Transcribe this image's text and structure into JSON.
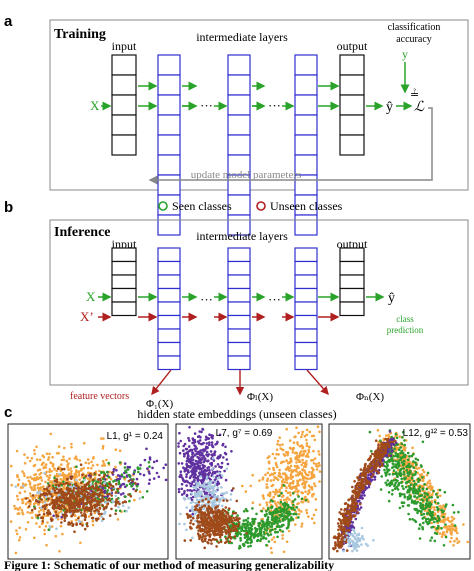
{
  "panel_a": {
    "letter": "a",
    "title": "Training",
    "input_label": "input",
    "intermediate_label": "intermediate layers",
    "output_label": "output",
    "x_label": "X",
    "yhat_label": "ŷ",
    "y_label": "y",
    "loss_label": "ℒ",
    "accuracy_line1": "classification",
    "accuracy_line2": "accuracy",
    "feedback_label": "update model parameters",
    "dots": "···"
  },
  "panel_b": {
    "letter": "b",
    "title": "Inference",
    "seen_label": "Seen classes",
    "unseen_label": "Unseen classes",
    "input_label": "input",
    "intermediate_label": "intermediate layers",
    "output_label": "output",
    "x_label": "X",
    "x2_label": "X’",
    "yhat_label": "ŷ",
    "pred_line1": "class",
    "pred_line2": "prediction",
    "feature_label": "feature vectors",
    "phi1": "Φ₁(X)",
    "phil": "Φₗ(X)",
    "phin": "Φₙ(X)",
    "dots": "···"
  },
  "panel_c": {
    "letter": "c",
    "title": "hidden state embeddings (unseen classes)",
    "plots": [
      {
        "label": "L1, g¹ = 0.24"
      },
      {
        "label": "L7, g⁷ = 0.69"
      },
      {
        "label": "L12, g¹² = 0.53"
      }
    ]
  },
  "caption": "Figure 1: Schematic of our method of measuring generalizability",
  "colors": {
    "layer_blue": "#2f2fd0",
    "seen_green": "#2aa32a",
    "unseen_red": "#b02020",
    "gray": "#888888",
    "cluster_orange": "#f5a540",
    "cluster_brown": "#a04a1a",
    "cluster_purple": "#6030a0",
    "cluster_green": "#2c9a2c",
    "cluster_lightblue": "#a8c8e0"
  }
}
